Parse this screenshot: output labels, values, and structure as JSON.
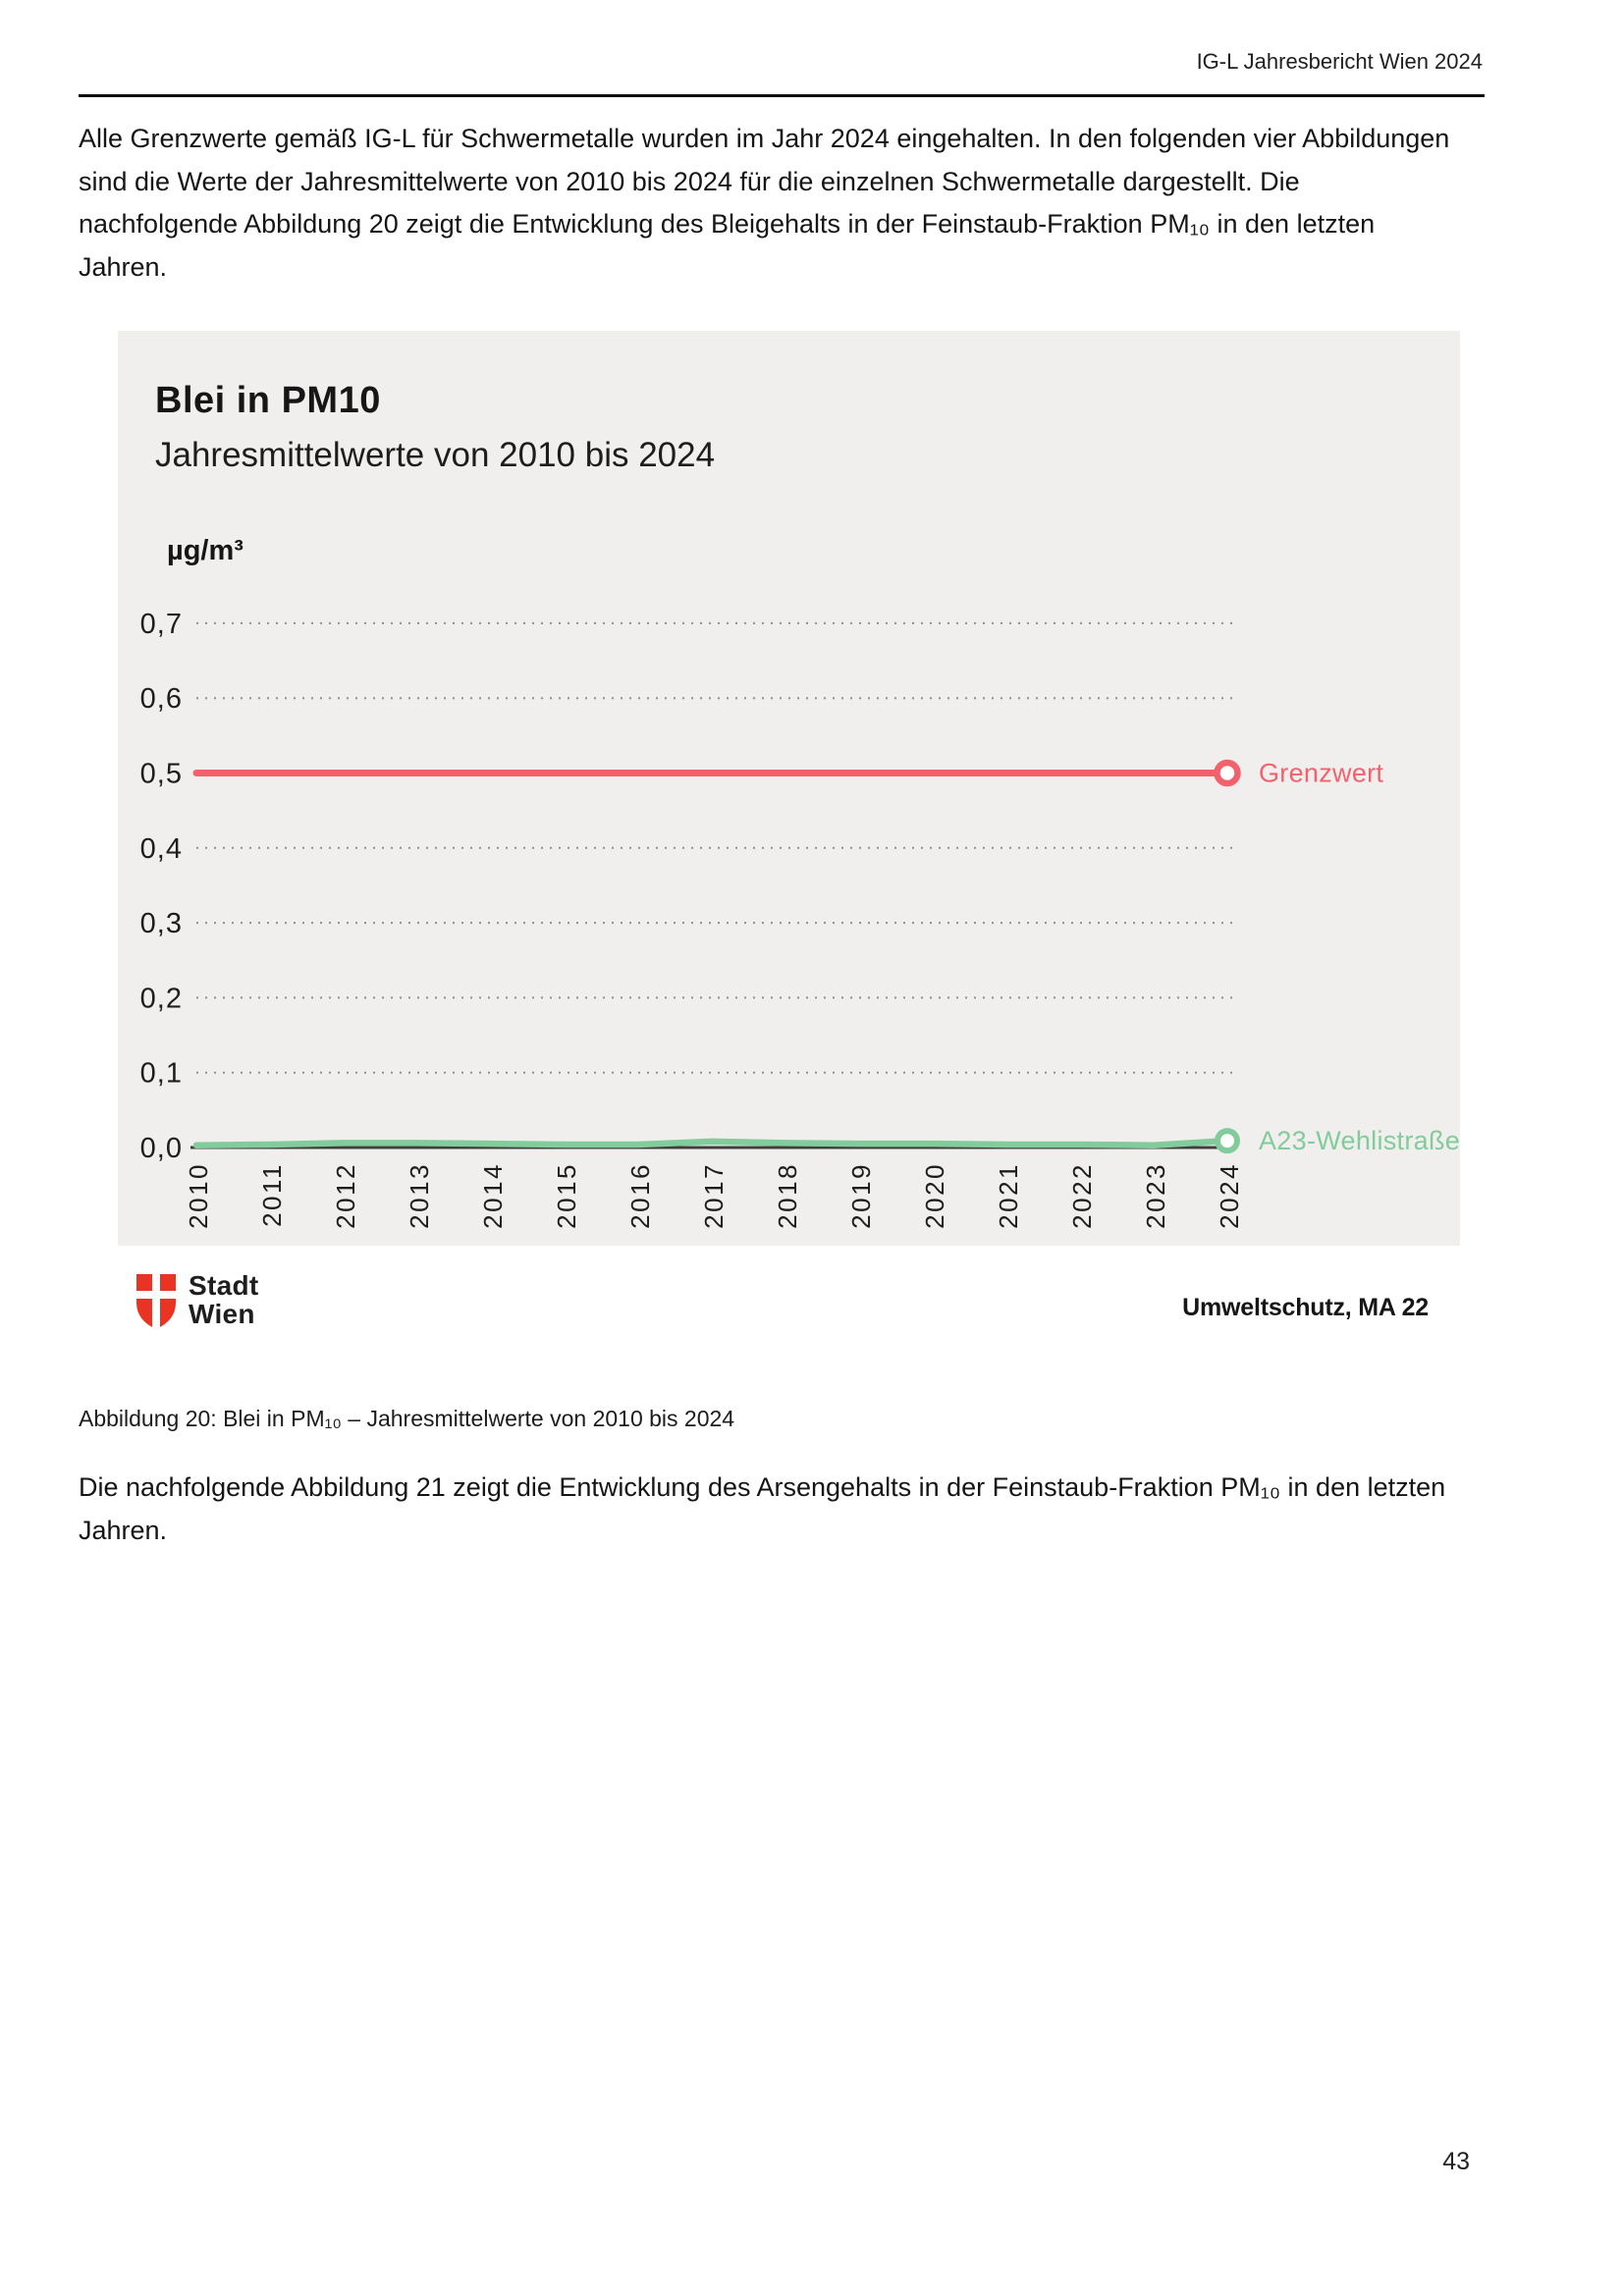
{
  "header": {
    "title": "IG-L Jahresbericht Wien 2024"
  },
  "intro_paragraph": "Alle Grenzwerte gemäß IG-L für Schwermetalle wurden im Jahr 2024 eingehalten. In den folgenden vier Abbildungen sind die Werte der Jahresmittelwerte von 2010 bis 2024 für die einzelnen Schwermetalle dargestellt. Die nachfolgende Abbildung 20 zeigt die Entwicklung des Bleigehalts in der Feinstaub-Fraktion PM₁₀ in den letzten Jahren.",
  "figure": {
    "title": "Blei in PM10",
    "subtitle": "Jahresmittelwerte von 2010 bis 2024",
    "unit_label": "µg/m³",
    "limit_label": "Grenzwert",
    "station_label": "A23-Wehlistraße",
    "logo_line1": "Stadt",
    "logo_line2": "Wien",
    "credit": "Umweltschutz, MA 22"
  },
  "caption": "Abbildung 20: Blei in PM₁₀ – Jahresmittelwerte von 2010 bis 2024",
  "next_paragraph": "Die nachfolgende Abbildung 21 zeigt die Entwicklung des Arsengehalts in der Feinstaub-Fraktion PM₁₀ in den letzten Jahren.",
  "page_number": "43",
  "colors": {
    "limit": "#f2616c",
    "series": "#82cb9b",
    "panel": "#f0efed",
    "grid": "#8f8f8f",
    "axis": "#3f3f3f",
    "logo_red": "#e93323",
    "marker_fill": "#ffffff"
  },
  "chart_data": {
    "type": "line",
    "title": "Blei in PM10",
    "subtitle": "Jahresmittelwerte von 2010 bis 2024",
    "ylabel": "µg/m³",
    "xlabel": "",
    "ylim": [
      0,
      0.75
    ],
    "yticks": [
      0.0,
      0.1,
      0.2,
      0.3,
      0.4,
      0.5,
      0.6,
      0.7
    ],
    "ytick_labels": [
      "0,0",
      "0,1",
      "0,2",
      "0,3",
      "0,4",
      "0,5",
      "0,6",
      "0,7"
    ],
    "categories": [
      2010,
      2011,
      2012,
      2013,
      2014,
      2015,
      2016,
      2017,
      2018,
      2019,
      2020,
      2021,
      2022,
      2023,
      2024
    ],
    "grid": "horizontal-dotted",
    "legend_position": "right-of-line-ends",
    "series": [
      {
        "name": "Grenzwert",
        "role": "limit",
        "value": 0.5
      },
      {
        "name": "A23-Wehlistraße",
        "role": "data",
        "values": [
          0.003,
          0.004,
          0.006,
          0.006,
          0.005,
          0.004,
          0.004,
          0.008,
          0.006,
          0.005,
          0.005,
          0.004,
          0.004,
          0.003,
          0.009
        ]
      }
    ]
  }
}
